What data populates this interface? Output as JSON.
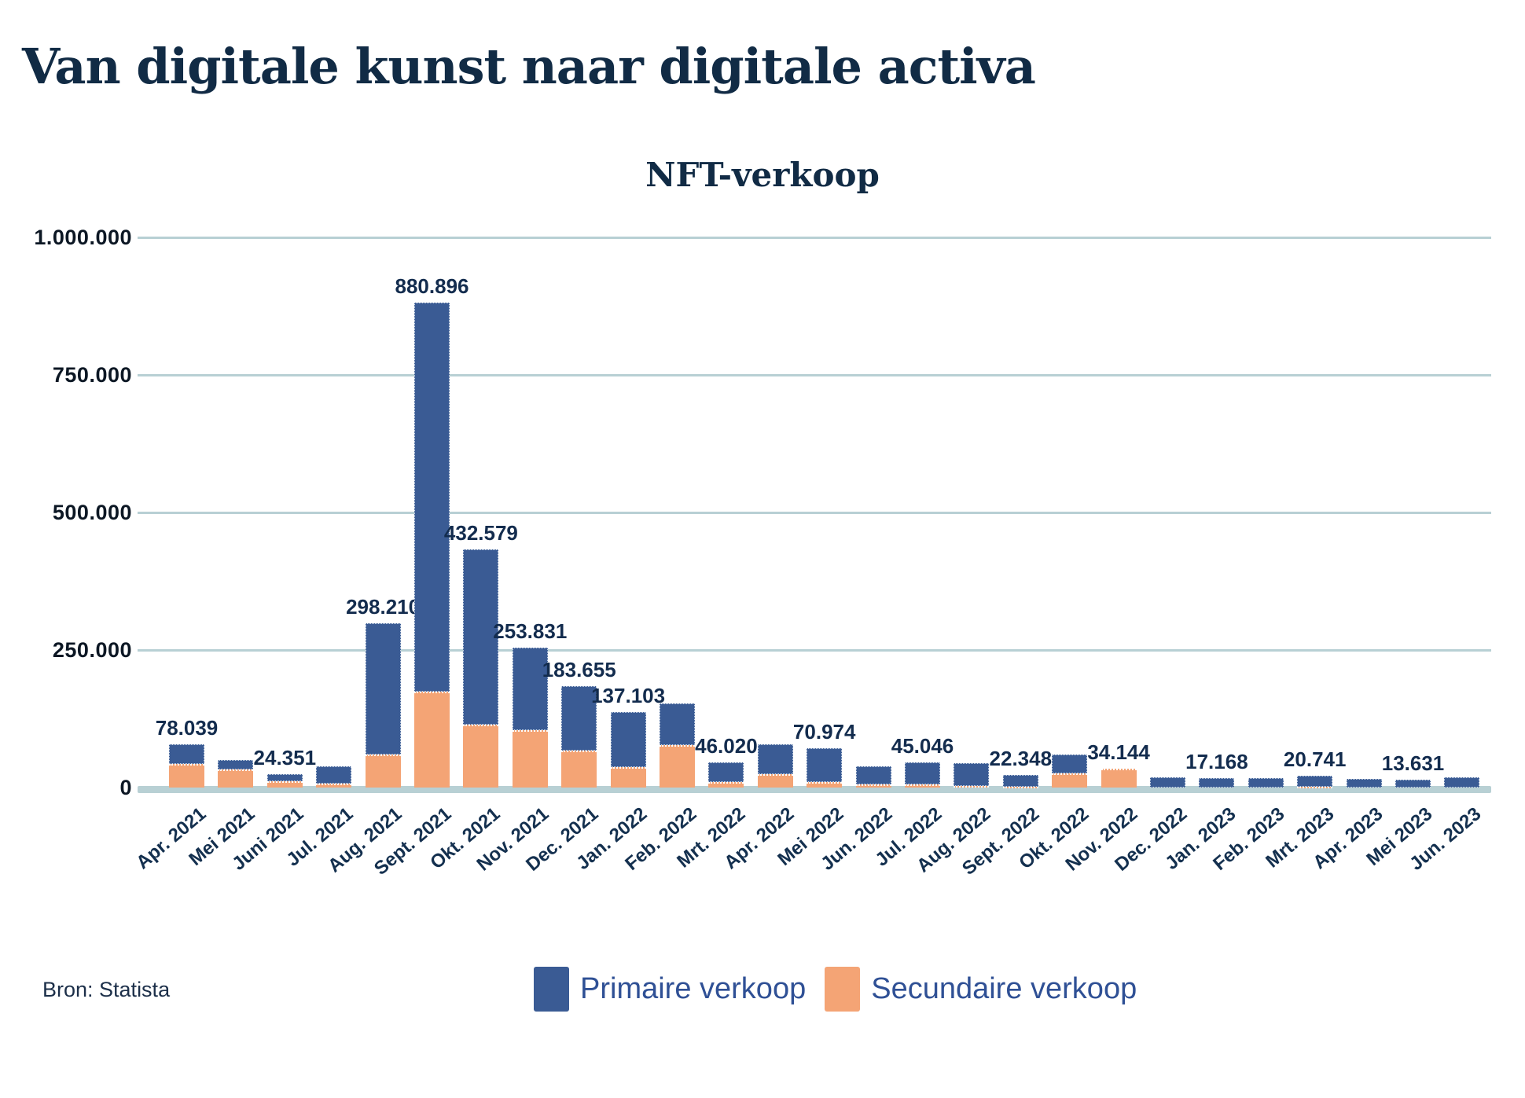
{
  "page_title": "Van digitale kunst naar digitale activa",
  "source": "Bron: Statista",
  "colors": {
    "primary_blue": "#3a5b94",
    "secondary_orange": "#f4a475",
    "gridline": "#b8d0d4",
    "title_navy": "#112b45",
    "legend_text": "#2f5095"
  },
  "chart_data": {
    "type": "bar",
    "stacked": true,
    "title": "NFT-verkoop",
    "xlabel": "",
    "ylabel": "",
    "ylim": [
      0,
      1000000
    ],
    "grid": true,
    "legend_position": "bottom",
    "y_ticks": [
      {
        "label": "1.000.000",
        "value": 1000000
      },
      {
        "label": "750.000",
        "value": 750000
      },
      {
        "label": "500.000",
        "value": 500000
      },
      {
        "label": "250.000",
        "value": 250000
      },
      {
        "label": "0",
        "value": 0
      }
    ],
    "categories": [
      "Apr. 2021",
      "Mei 2021",
      "Juni 2021",
      "Jul. 2021",
      "Aug. 2021",
      "Sept. 2021",
      "Okt. 2021",
      "Nov. 2021",
      "Dec. 2021",
      "Jan. 2022",
      "Feb. 2022",
      "Mrt. 2022",
      "Apr. 2022",
      "Mei 2022",
      "Jun. 2022",
      "Jul. 2022",
      "Aug. 2022",
      "Sept. 2022",
      "Okt. 2022",
      "Nov. 2022",
      "Dec. 2022",
      "Jan. 2023",
      "Feb. 2023",
      "Mrt. 2023",
      "Apr. 2023",
      "Mei 2023",
      "Jun. 2023"
    ],
    "series": [
      {
        "name": "Primaire verkoop",
        "color": "#3a5b94",
        "values": [
          35039,
          17000,
          12351,
          31000,
          238210,
          706896,
          318579,
          149831,
          116655,
          100103,
          76000,
          36020,
          55000,
          60974,
          33000,
          39046,
          41000,
          21348,
          34000,
          0,
          18500,
          17168,
          17500,
          19241,
          15500,
          13631,
          19000
        ]
      },
      {
        "name": "Secundaire verkoop",
        "color": "#f4a475",
        "values": [
          43000,
          33000,
          12000,
          7000,
          60000,
          174000,
          114000,
          104000,
          67000,
          37000,
          77000,
          10000,
          24000,
          10000,
          6000,
          6000,
          3000,
          1000,
          26000,
          34144,
          0,
          0,
          0,
          1500,
          0,
          0,
          0
        ]
      }
    ],
    "totals": [
      78039,
      50000,
      24351,
      38000,
      298210,
      880896,
      432579,
      253831,
      183655,
      137103,
      153000,
      46020,
      79000,
      70974,
      39000,
      45046,
      44000,
      22348,
      60000,
      34144,
      18500,
      17168,
      17500,
      20741,
      15500,
      13631,
      19000
    ],
    "totals_labels": [
      "78.039",
      "",
      "24.351",
      "",
      "298.210",
      "880.896",
      "432.579",
      "253.831",
      "183.655",
      "137.103",
      "",
      "46.020",
      "",
      "70.974",
      "",
      "45.046",
      "",
      "22.348",
      "",
      "34.144",
      "",
      "17.168",
      "",
      "20.741",
      "",
      "13.631",
      ""
    ]
  }
}
